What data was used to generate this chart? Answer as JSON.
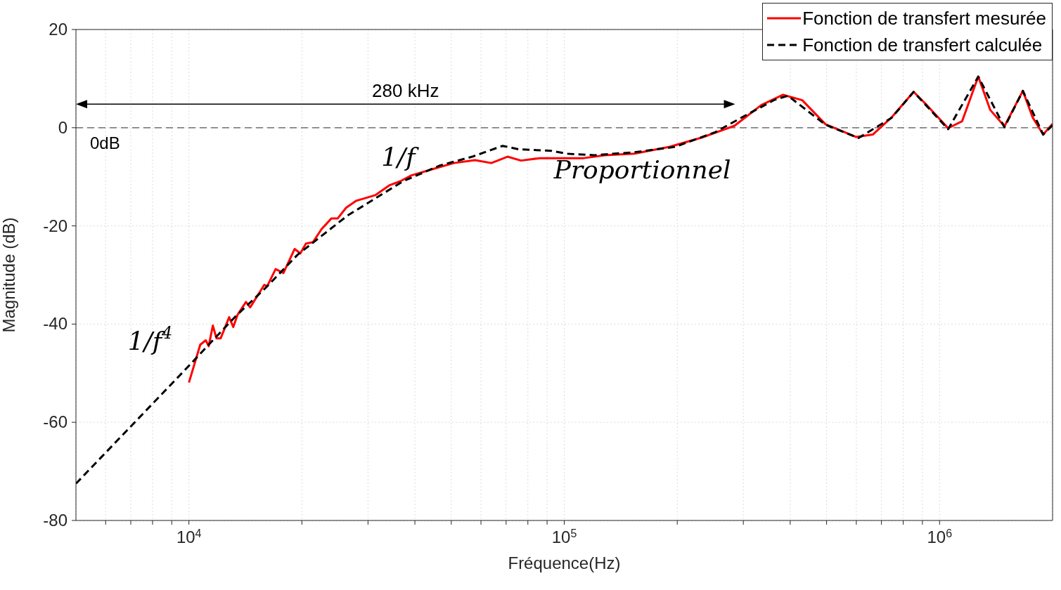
{
  "chart_data": {
    "type": "line",
    "xlabel": "Fréquence(Hz)",
    "ylabel": "Magnitude (dB)",
    "log": "x",
    "grid": true,
    "legend": "top right",
    "xlim": [
      5000,
      2000000
    ],
    "ylim": [
      -80,
      20
    ],
    "xticks": [
      {
        "value": 6000,
        "label": null
      },
      {
        "value": 7000,
        "label": null
      },
      {
        "value": 8000,
        "label": null
      },
      {
        "value": 9000,
        "label": null
      },
      {
        "value": 10000,
        "label": "10$^{4}$"
      },
      {
        "value": 20000,
        "label": null
      },
      {
        "value": 30000,
        "label": null
      },
      {
        "value": 40000,
        "label": null
      },
      {
        "value": 50000,
        "label": null
      },
      {
        "value": 60000,
        "label": null
      },
      {
        "value": 70000,
        "label": null
      },
      {
        "value": 80000,
        "label": null
      },
      {
        "value": 90000,
        "label": null
      },
      {
        "value": 100000,
        "label": "10$^{5}$"
      },
      {
        "value": 200000,
        "label": null
      },
      {
        "value": 300000,
        "label": null
      },
      {
        "value": 400000,
        "label": null
      },
      {
        "value": 500000,
        "label": null
      },
      {
        "value": 600000,
        "label": null
      },
      {
        "value": 700000,
        "label": null
      },
      {
        "value": 800000,
        "label": null
      },
      {
        "value": 900000,
        "label": null
      },
      {
        "value": 1000000,
        "label": "10$^{6}$"
      }
    ],
    "yticks": [
      -80,
      -60,
      -40,
      -20,
      0,
      20
    ],
    "series": [
      {
        "name": "Fonction de transfert mesurée",
        "color": "#ff0000",
        "line_style": "solid",
        "x": [
          10000,
          10720,
          11090,
          11290,
          11580,
          11840,
          12150,
          12800,
          13130,
          13480,
          14190,
          14560,
          15880,
          16160,
          17020,
          17860,
          19130,
          19810,
          20500,
          21420,
          22540,
          23950,
          24900,
          26230,
          27870,
          31450,
          34280,
          36580,
          39190,
          46630,
          50820,
          57810,
          63940,
          70610,
          76700,
          86100,
          98400,
          112700,
          128200,
          153800,
          190900,
          232800,
          266100,
          284300,
          334900,
          382800,
          430500,
          496600,
          600000,
          663700,
          745000,
          852900,
          924600,
          1054000,
          1148000,
          1268000,
          1365000,
          1489000,
          1667000,
          1770000,
          1888000,
          2000000
        ],
        "values": [
          -51.9,
          -44.2,
          -43.3,
          -44.5,
          -40.3,
          -42.9,
          -42.9,
          -38.6,
          -40.6,
          -38.1,
          -35.5,
          -36.6,
          -32.0,
          -32.3,
          -28.8,
          -29.6,
          -24.7,
          -25.6,
          -23.6,
          -23.3,
          -20.7,
          -18.5,
          -18.5,
          -16.3,
          -14.9,
          -13.7,
          -11.7,
          -10.9,
          -9.7,
          -8.0,
          -7.2,
          -6.6,
          -7.2,
          -5.9,
          -6.7,
          -6.2,
          -6.2,
          -6.2,
          -5.6,
          -5.3,
          -3.9,
          -2.0,
          -0.4,
          0.4,
          4.6,
          6.7,
          5.6,
          0.7,
          -1.9,
          -1.4,
          2.1,
          7.3,
          4.6,
          -0.1,
          1.3,
          10.4,
          3.6,
          0.3,
          7.5,
          2.1,
          -1.4,
          0.8
        ]
      },
      {
        "name": "Fonction de transfert calculée",
        "color": "#000000",
        "line_style": "dashed",
        "x": [
          5000,
          10000,
          11290,
          13360,
          15880,
          19460,
          26460,
          34590,
          37220,
          46630,
          56890,
          68510,
          75630,
          92310,
          101600,
          120200,
          153800,
          197600,
          252700,
          294200,
          363700,
          394500,
          496600,
          608200,
          745000,
          852900,
          1054000,
          1268000,
          1489000,
          1667000,
          1888000,
          2000000
        ],
        "values": [
          -72.5,
          -48.5,
          -44.2,
          -38.3,
          -32.9,
          -25.9,
          -17.9,
          -12.4,
          -10.9,
          -7.7,
          -5.9,
          -3.7,
          -4.4,
          -4.7,
          -5.3,
          -5.6,
          -5.0,
          -3.9,
          -0.9,
          1.9,
          5.7,
          6.5,
          0.6,
          -2.1,
          2.0,
          7.3,
          -0.3,
          10.4,
          0.1,
          7.5,
          -1.4,
          0.5
        ]
      }
    ],
    "ref_lines": [
      {
        "axis": "y",
        "value": 0,
        "label": "0dB",
        "color": "#555555",
        "line_style": "dashed"
      }
    ],
    "annotations": [
      "280 kHz",
      "1/f$^{4}$",
      "1/f",
      "Proportionnel"
    ]
  }
}
